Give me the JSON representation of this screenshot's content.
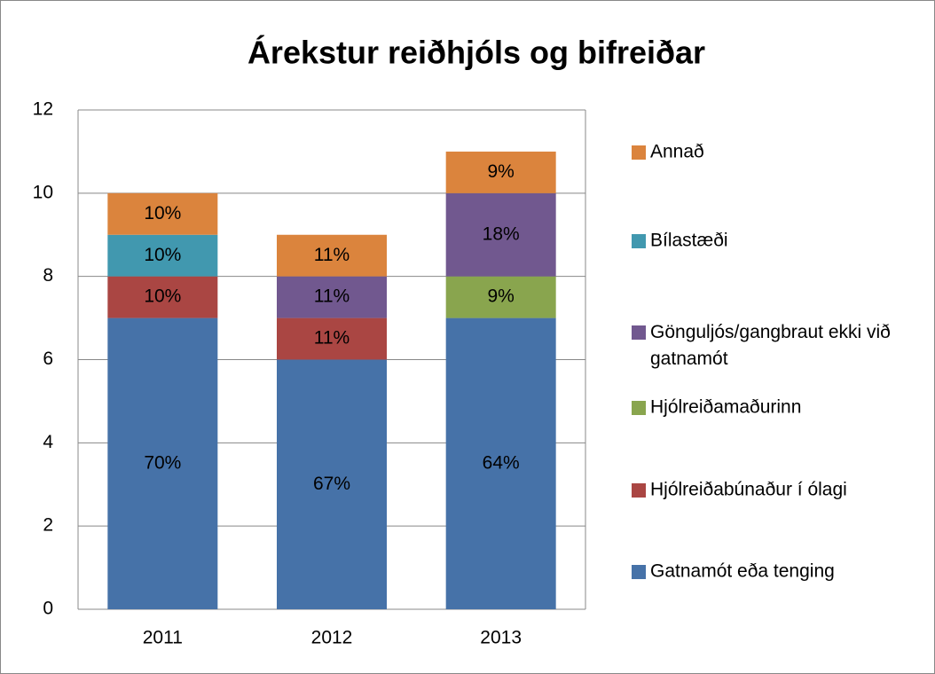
{
  "chart_data": {
    "type": "stacked_bar",
    "title": "Árekstur reiðhjóls og bifreiðar",
    "categories": [
      "2011",
      "2012",
      "2013"
    ],
    "series": [
      {
        "name": "Gatnamót eða tenging",
        "color": "#4672a8",
        "values": [
          7,
          6,
          7
        ],
        "value_labels": [
          "70%",
          "67%",
          "64%"
        ]
      },
      {
        "name": "Hjólreiðabúnaður í ólagi",
        "color": "#aa4643",
        "values": [
          1,
          1,
          0
        ],
        "value_labels": [
          "10%",
          "11%",
          null
        ]
      },
      {
        "name": "Hjólreiðamaðurinn",
        "color": "#89a54e",
        "values": [
          0,
          0,
          1
        ],
        "value_labels": [
          null,
          null,
          "9%"
        ]
      },
      {
        "name": "Gönguljós/gangbraut ekki við gatnamót",
        "color": "#71588f",
        "values": [
          0,
          1,
          2
        ],
        "value_labels": [
          null,
          "11%",
          "18%"
        ]
      },
      {
        "name": "Bílastæði",
        "color": "#4198af",
        "values": [
          1,
          0,
          0
        ],
        "value_labels": [
          "10%",
          null,
          null
        ]
      },
      {
        "name": "Annað",
        "color": "#db843d",
        "values": [
          1,
          1,
          1
        ],
        "value_labels": [
          "10%",
          "11%",
          "9%"
        ]
      }
    ],
    "ylim": [
      0,
      12
    ],
    "yticks": [
      0,
      2,
      4,
      6,
      8,
      10,
      12
    ],
    "grid": true,
    "legend": "right"
  }
}
